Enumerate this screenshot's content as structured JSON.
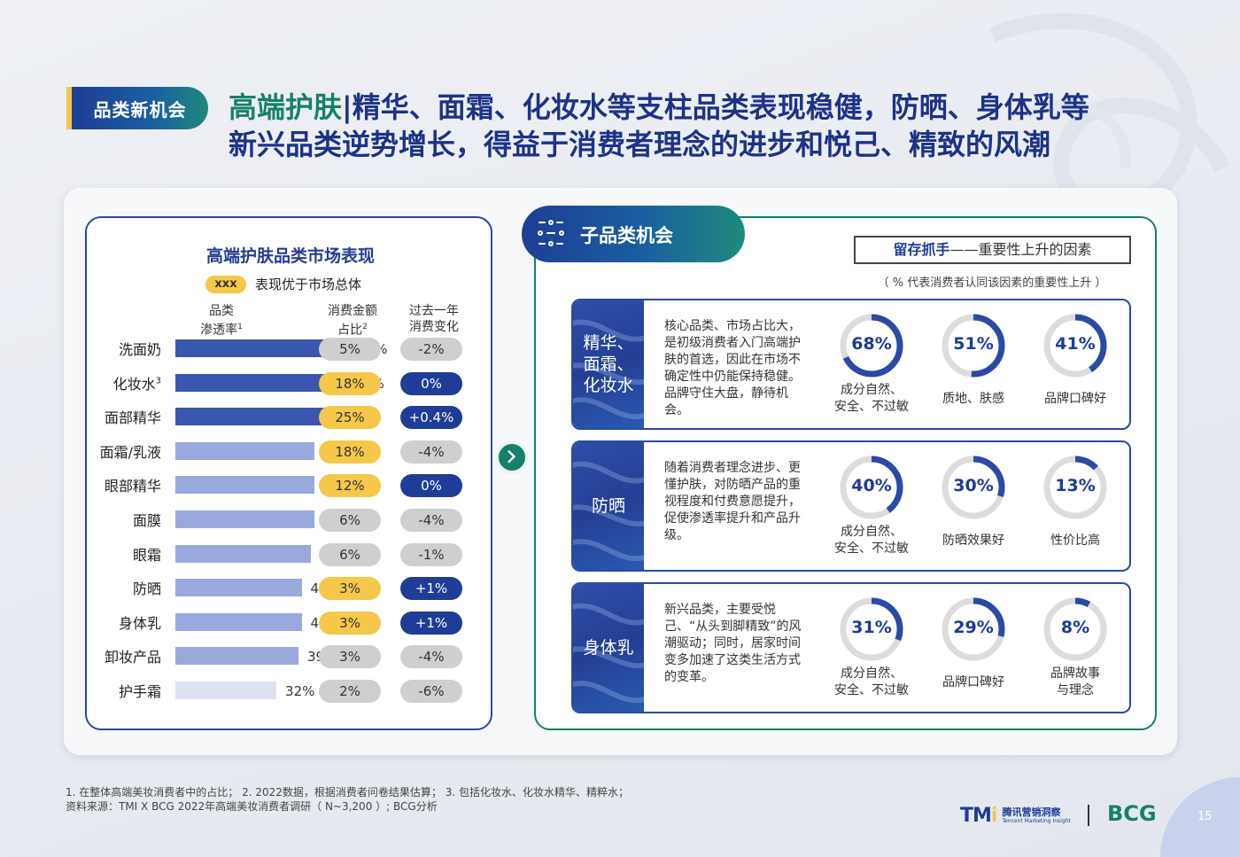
{
  "header": {
    "tag": "品类新机会",
    "title_highlight": "高端护肤",
    "title_sep": "|",
    "title_line1": "精华、面霜、化妆水等支柱品类表现稳健，防晒、身体乳等",
    "title_line2": "新兴品类逆势增长，得益于消费者理念的进步和悦己、精致的风潮"
  },
  "left": {
    "title": "高端护肤品类市场表现",
    "legend_pill": "xxx",
    "legend_text": "表现优于市场总体",
    "col_penetration": "品类",
    "col_penetration2": "渗透率",
    "col_penetration_sup": "1",
    "col_share": "消费金额",
    "col_share2": "占比",
    "col_share_sup": "2",
    "col_change": "过去一年",
    "col_change2": "消费变化"
  },
  "chart_data": {
    "type": "bar",
    "categories": [
      "洗面奶",
      "化妆水",
      "面部精华",
      "面霜/乳液",
      "眼部精华",
      "面膜",
      "眼霜",
      "防晒",
      "身体乳",
      "卸妆产品",
      "护手霜"
    ],
    "category_sups": [
      "",
      "3",
      "",
      "",
      "",
      "",
      "",
      "",
      "",
      "",
      ""
    ],
    "series": [
      {
        "name": "品类渗透率",
        "values": [
          55,
          54,
          53,
          44,
          44,
          44,
          43,
          40,
          40,
          39,
          32
        ],
        "labels": [
          "55%",
          "54%",
          "53%",
          "44%",
          "44%",
          "44%",
          "43%",
          "40%",
          "40%",
          "39%",
          "32%"
        ]
      },
      {
        "name": "消费金额占比",
        "values": [
          5,
          18,
          25,
          18,
          12,
          6,
          6,
          3,
          3,
          3,
          2
        ],
        "labels": [
          "5%",
          "18%",
          "25%",
          "18%",
          "12%",
          "6%",
          "6%",
          "3%",
          "3%",
          "3%",
          "2%"
        ],
        "highlight": [
          false,
          true,
          true,
          true,
          true,
          false,
          false,
          true,
          true,
          false,
          false
        ]
      },
      {
        "name": "过去一年消费变化",
        "values": [
          -2,
          0,
          0.4,
          -4,
          0,
          -4,
          -1,
          1,
          1,
          -4,
          -6
        ],
        "labels": [
          "-2%",
          "0%",
          "+0.4%",
          "-4%",
          "0%",
          "-4%",
          "-1%",
          "+1%",
          "+1%",
          "-4%",
          "-6%"
        ],
        "highlight": [
          false,
          true,
          true,
          false,
          true,
          false,
          false,
          true,
          true,
          false,
          false
        ]
      }
    ],
    "bar_colors": [
      "#3a57b0",
      "#3a57b0",
      "#3a57b0",
      "#9aa9dd",
      "#9aa9dd",
      "#9aa9dd",
      "#9aa9dd",
      "#9aa9dd",
      "#9aa9dd",
      "#9aa9dd",
      "#dde2f2"
    ]
  },
  "colors": {
    "navy": "#1d3288",
    "teal": "#17806a",
    "yellow": "#f5c84a",
    "pill_blue": "#1f3d96",
    "pill_gray": "#cfcfcf"
  },
  "right": {
    "sub_tag": "子品类机会",
    "factor_title": "留存抓手",
    "factor_title_rest": "——重要性上升的因素",
    "factor_note": "（ % 代表消费者认同该因素的重要性上升 ）",
    "categories": [
      {
        "name_lines": [
          "精华、",
          "面霜、",
          "化妆水"
        ],
        "desc": "核心品类、市场占比大，是初级消费者入门高端护肤的首选，因此在市场不确定性中仍能保持稳健。品牌守住大盘，静待机会。",
        "factors": [
          {
            "value": 68,
            "label": "68%",
            "text_lines": [
              "成分自然、",
              "安全、不过敏"
            ]
          },
          {
            "value": 51,
            "label": "51%",
            "text_lines": [
              "质地、肤感"
            ]
          },
          {
            "value": 41,
            "label": "41%",
            "text_lines": [
              "品牌口碑好"
            ]
          }
        ]
      },
      {
        "name_lines": [
          "防晒"
        ],
        "desc": "随着消费者理念进步、更懂护肤，对防晒产品的重视程度和付费意愿提升，促使渗透率提升和产品升级。",
        "factors": [
          {
            "value": 40,
            "label": "40%",
            "text_lines": [
              "成分自然、",
              "安全、不过敏"
            ]
          },
          {
            "value": 30,
            "label": "30%",
            "text_lines": [
              "防晒效果好"
            ]
          },
          {
            "value": 13,
            "label": "13%",
            "text_lines": [
              "性价比高"
            ]
          }
        ]
      },
      {
        "name_lines": [
          "身体乳"
        ],
        "desc": "新兴品类，主要受悦己、“从头到脚精致”的风潮驱动；同时，居家时间变多加速了这类生活方式的变革。",
        "factors": [
          {
            "value": 31,
            "label": "31%",
            "text_lines": [
              "成分自然、",
              "安全、不过敏"
            ]
          },
          {
            "value": 29,
            "label": "29%",
            "text_lines": [
              "品牌口碑好"
            ]
          },
          {
            "value": 8,
            "label": "8%",
            "text_lines": [
              "品牌故事",
              "与理念"
            ]
          }
        ]
      }
    ]
  },
  "footer": {
    "note1": "1. 在整体高端美妆消费者中的占比； 2. 2022数据，根据消费者问卷结果估算； 3. 包括化妆水、化妆水精华、精粹水；",
    "note2": "资料来源：TMI X BCG 2022年高端美妆消费者调研（ N~3,200 ）; BCG分析",
    "logo_tmi_mark_a": "TM",
    "logo_tmi_mark_b": "i",
    "logo_tmi_cn": "腾讯营销洞察",
    "logo_tmi_en": "Tencent Marketing Insight",
    "logo_bcg": "BCG",
    "page": "15"
  }
}
